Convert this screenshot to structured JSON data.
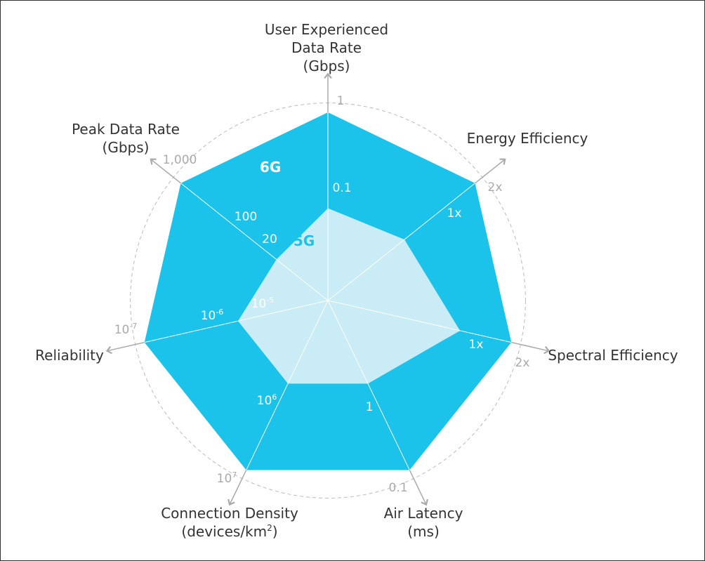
{
  "chart_data": {
    "type": "radar",
    "colors": {
      "6G": "#1bc3ea",
      "5G": "#c9ecf6",
      "axis": "#aaaaaa",
      "tick_inner": "#ffffff",
      "tick_outer": "#aaaaaa",
      "label_6G": "#ffffff",
      "label_5G": "#1bc3ea",
      "grid": "#bbbbbb"
    },
    "axes": [
      {
        "name": "user-experienced-data-rate",
        "label": [
          "User Experienced",
          "Data Rate",
          "(Gbps)"
        ],
        "ticks": {
          "5G": {
            "base": "0.1"
          },
          "6G": {
            "base": "1"
          }
        }
      },
      {
        "name": "energy-efficiency",
        "label": [
          "Energy Efficiency"
        ],
        "ticks": {
          "5G": {
            "base": "1x"
          },
          "6G": {
            "base": "2x"
          }
        }
      },
      {
        "name": "spectral-efficiency",
        "label": [
          "Spectral Efficiency"
        ],
        "ticks": {
          "5G": {
            "base": "1x"
          },
          "6G": {
            "base": "2x"
          }
        }
      },
      {
        "name": "air-latency",
        "label": [
          "Air Latency",
          "(ms)"
        ],
        "ticks": {
          "5G": {
            "base": "1"
          },
          "6G": {
            "base": "0.1"
          }
        }
      },
      {
        "name": "connection-density",
        "label": [
          "Connection Density",
          "(devices/km",
          "2",
          ")"
        ],
        "ticks": {
          "5G": {
            "base": "10",
            "sup": "6"
          },
          "6G": {
            "base": "10",
            "sup": "7"
          }
        }
      },
      {
        "name": "reliability",
        "label": [
          "Reliability"
        ],
        "ticks": {
          "5G": {
            "base": "10",
            "sup": "-5"
          },
          "6G": {
            "base": "10",
            "sup": "-6"
          },
          "outer": {
            "base": "10",
            "sup": "-7"
          }
        }
      },
      {
        "name": "peak-data-rate",
        "label": [
          "Peak Data Rate",
          "(Gbps)"
        ],
        "ticks": {
          "5G": {
            "base": "20"
          },
          "mid": {
            "base": "100"
          },
          "6G": {
            "base": "1,000"
          }
        }
      }
    ],
    "series": [
      {
        "name": "6G",
        "values": [
          1.0,
          1.0,
          1.0,
          1.0,
          1.0,
          1.0,
          1.0
        ]
      },
      {
        "name": "5G",
        "values": [
          0.49,
          0.52,
          0.72,
          0.49,
          0.49,
          0.49,
          0.35
        ]
      }
    ],
    "gridlines": [
      0.27,
      0.53,
      1.05
    ]
  }
}
